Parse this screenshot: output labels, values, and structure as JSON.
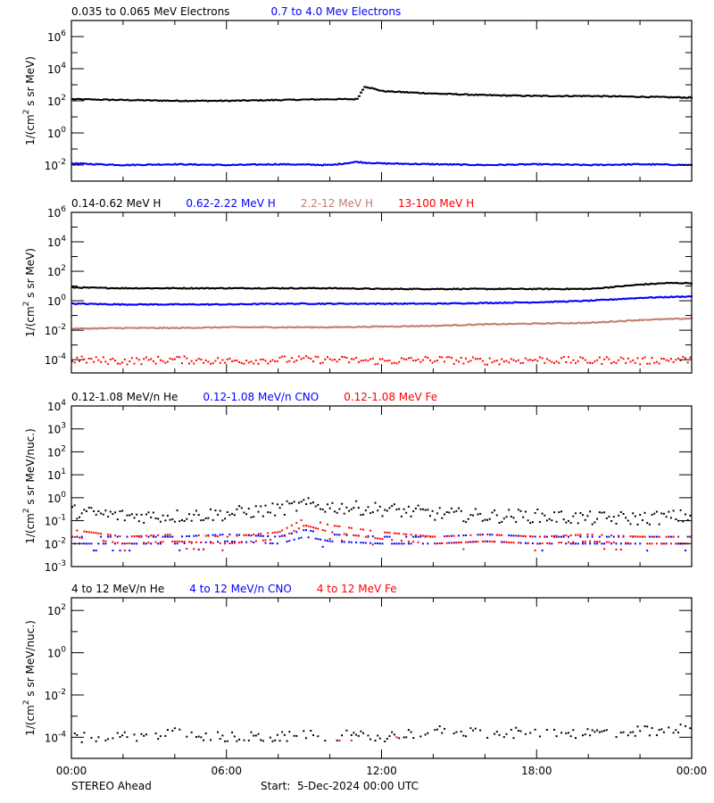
{
  "footer": {
    "spacecraft": "STEREO Ahead",
    "start_label": "Start:  5-Dec-2024 00:00 UTC"
  },
  "colors": {
    "black": "#000000",
    "blue": "#0000ff",
    "tan": "#c0806a",
    "red": "#ff0000"
  },
  "chart_data": [
    {
      "type": "scatter",
      "title": "Electrons",
      "legend": [
        {
          "label": "0.035 to 0.065 MeV Electrons",
          "color": "#000000"
        },
        {
          "label": "0.7 to 4.0 Mev Electrons",
          "color": "#0000ff"
        }
      ],
      "ylabel": "1/(cm² s sr MeV)",
      "yscale": "log",
      "ylim_exp": [
        -3,
        7
      ],
      "yticks": [
        "10^6",
        "10^4",
        "10^2",
        "10^0",
        "10^-2"
      ],
      "ytick_exps": [
        6,
        4,
        2,
        0,
        -2
      ],
      "x": [
        0,
        2,
        4,
        6,
        8,
        10,
        11,
        11.3,
        12,
        14,
        16,
        18,
        20,
        22,
        24
      ],
      "series": [
        {
          "name": "0.035 to 0.065 MeV Electrons",
          "color": "#000000",
          "values_exp": [
            2.1,
            2.05,
            2.0,
            2.0,
            2.05,
            2.1,
            2.1,
            2.9,
            2.6,
            2.45,
            2.35,
            2.3,
            2.3,
            2.25,
            2.2
          ]
        },
        {
          "name": "0.7 to 4.0 Mev Electrons",
          "color": "#0000ff",
          "values_exp": [
            -1.9,
            -2.0,
            -1.95,
            -2.0,
            -1.95,
            -2.0,
            -1.8,
            -1.85,
            -1.9,
            -1.95,
            -2.0,
            -1.95,
            -2.0,
            -1.95,
            -2.0
          ]
        }
      ]
    },
    {
      "type": "scatter",
      "title": "Protons",
      "legend": [
        {
          "label": "0.14-0.62 MeV H",
          "color": "#000000"
        },
        {
          "label": "0.62-2.22 MeV H",
          "color": "#0000ff"
        },
        {
          "label": "2.2-12 MeV H",
          "color": "#c0806a"
        },
        {
          "label": "13-100 MeV H",
          "color": "#ff0000"
        }
      ],
      "ylabel": "1/(cm² s sr MeV)",
      "yscale": "log",
      "ylim_exp": [
        -4.9,
        6
      ],
      "yticks": [
        "10^6",
        "10^4",
        "10^2",
        "10^0",
        "10^-2",
        "10^-4"
      ],
      "ytick_exps": [
        6,
        4,
        2,
        0,
        -2,
        -4
      ],
      "x": [
        0,
        2,
        4,
        6,
        8,
        10,
        12,
        14,
        16,
        18,
        20,
        21,
        22,
        23,
        24
      ],
      "series": [
        {
          "name": "0.14-0.62 MeV H",
          "color": "#000000",
          "values_exp": [
            0.9,
            0.85,
            0.85,
            0.85,
            0.85,
            0.85,
            0.8,
            0.8,
            0.8,
            0.8,
            0.8,
            0.95,
            1.1,
            1.2,
            1.2
          ]
        },
        {
          "name": "0.62-2.22 MeV H",
          "color": "#0000ff",
          "values_exp": [
            -0.2,
            -0.25,
            -0.25,
            -0.25,
            -0.2,
            -0.2,
            -0.2,
            -0.2,
            -0.15,
            -0.1,
            0.0,
            0.1,
            0.2,
            0.25,
            0.3
          ]
        },
        {
          "name": "2.2-12 MeV H",
          "color": "#c0806a",
          "values_exp": [
            -1.9,
            -1.85,
            -1.85,
            -1.8,
            -1.8,
            -1.8,
            -1.75,
            -1.7,
            -1.6,
            -1.55,
            -1.5,
            -1.4,
            -1.3,
            -1.25,
            -1.2
          ]
        },
        {
          "name": "13-100 MeV H",
          "color": "#ff0000",
          "values_exp": [
            -4.0,
            -4.1,
            -4.0,
            -4.1,
            -4.0,
            -4.0,
            -4.1,
            -4.0,
            -4.1,
            -4.0,
            -4.1,
            -4.0,
            -4.1,
            -4.0,
            -4.0
          ]
        }
      ]
    },
    {
      "type": "scatter",
      "title": "Low-energy heavy ions",
      "legend": [
        {
          "label": "0.12-1.08 MeV/n He",
          "color": "#000000"
        },
        {
          "label": "0.12-1.08 MeV/n CNO",
          "color": "#0000ff"
        },
        {
          "label": "0.12-1.08 MeV Fe",
          "color": "#ff0000"
        }
      ],
      "ylabel": "1/(cm² s sr MeV/nuc.)",
      "yscale": "log",
      "ylim_exp": [
        -3,
        4
      ],
      "yticks": [
        "10^4",
        "10^3",
        "10^2",
        "10^1",
        "10^0",
        "10^-1",
        "10^-2",
        "10^-3"
      ],
      "ytick_exps": [
        4,
        3,
        2,
        1,
        0,
        -1,
        -2,
        -3
      ],
      "x": [
        0,
        2,
        4,
        6,
        8,
        9,
        10,
        12,
        14,
        16,
        18,
        20,
        22,
        24
      ],
      "series": [
        {
          "name": "0.12-1.08 MeV/n He",
          "color": "#000000",
          "values_exp": [
            -0.6,
            -0.8,
            -0.8,
            -0.7,
            -0.5,
            -0.3,
            -0.4,
            -0.5,
            -0.7,
            -0.8,
            -0.8,
            -0.9,
            -0.9,
            -0.8
          ]
        },
        {
          "name": "0.12-1.08 MeV/n CNO",
          "color": "#0000ff",
          "values_exp": [
            -2.0,
            -2.0,
            -2.0,
            -1.9,
            -2.0,
            -1.7,
            -1.9,
            -2.0,
            -2.0,
            -1.9,
            -2.0,
            -2.0,
            -2.0,
            -2.0
          ]
        },
        {
          "name": "0.12-1.08 MeV Fe",
          "color": "#ff0000",
          "values_exp": [
            -1.7,
            -2.0,
            -1.9,
            -2.0,
            -1.8,
            -1.2,
            -1.5,
            -1.8,
            -2.0,
            -1.9,
            -2.0,
            -1.9,
            -2.0,
            -2.0
          ]
        }
      ]
    },
    {
      "type": "scatter",
      "title": "High-energy heavy ions",
      "legend": [
        {
          "label": "4 to 12 MeV/n He",
          "color": "#000000"
        },
        {
          "label": "4 to 12 MeV/n CNO",
          "color": "#0000ff"
        },
        {
          "label": "4 to 12 MeV Fe",
          "color": "#ff0000"
        }
      ],
      "ylabel": "1/(cm² s sr MeV/nuc.)",
      "yscale": "log",
      "ylim_exp": [
        -5,
        2.6
      ],
      "yticks": [
        "10^2",
        "10^0",
        "10^-2",
        "10^-4"
      ],
      "ytick_exps": [
        2,
        0,
        -2,
        -4
      ],
      "x": [
        0,
        2,
        4,
        6,
        8,
        10,
        12,
        14,
        16,
        18,
        20,
        22,
        23,
        24
      ],
      "series": [
        {
          "name": "4 to 12 MeV/n He",
          "color": "#000000",
          "values_exp": [
            -4.0,
            -4.0,
            -3.8,
            -4.0,
            -4.0,
            -3.9,
            -4.0,
            -3.7,
            -3.8,
            -3.8,
            -3.8,
            -3.7,
            -3.8,
            -3.3
          ]
        },
        {
          "name": "4 to 12 MeV Fe",
          "color": "#ff0000",
          "values_exp": [
            null,
            null,
            null,
            null,
            null,
            null,
            -4.0,
            -4.0,
            null,
            null,
            null,
            null,
            null,
            null
          ]
        }
      ]
    }
  ],
  "xaxis": {
    "tick_labels": [
      "00:00",
      "06:00",
      "12:00",
      "18:00",
      "00:00"
    ],
    "range_hours": [
      0,
      24
    ]
  }
}
